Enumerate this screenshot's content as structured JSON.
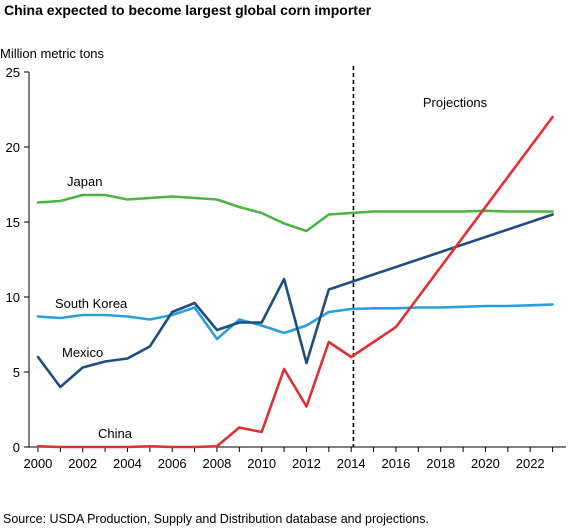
{
  "title": "China expected to become largest global corn importer",
  "source": "Source: USDA Production, Supply and Distribution database and projections.",
  "chart_data": {
    "type": "line",
    "title": "China expected to become largest global corn importer",
    "ylabel": "Million metric tons",
    "xlabel": "",
    "xlim": [
      1999.6,
      2023.6
    ],
    "ylim": [
      0,
      25
    ],
    "yticks": [
      0,
      5,
      10,
      15,
      20,
      25
    ],
    "xticks": [
      2000,
      2002,
      2004,
      2006,
      2008,
      2010,
      2012,
      2014,
      2016,
      2018,
      2020,
      2022
    ],
    "divider_year": 2014.1,
    "divider_label": "Projections",
    "grid": false,
    "legend": "inline labels",
    "series": [
      {
        "name": "Japan",
        "color": "#4bb543",
        "x": [
          2000,
          2001,
          2002,
          2003,
          2004,
          2005,
          2006,
          2007,
          2008,
          2009,
          2010,
          2011,
          2012,
          2013,
          2014,
          2015,
          2016,
          2017,
          2018,
          2019,
          2020,
          2021,
          2022,
          2023
        ],
        "values": [
          16.3,
          16.4,
          16.8,
          16.8,
          16.5,
          16.6,
          16.7,
          16.6,
          16.5,
          16.0,
          15.6,
          14.9,
          14.4,
          15.5,
          15.6,
          15.7,
          15.7,
          15.7,
          15.7,
          15.7,
          15.75,
          15.7,
          15.7,
          15.7
        ]
      },
      {
        "name": "South Korea",
        "color": "#2b9fdc",
        "x": [
          2000,
          2001,
          2002,
          2003,
          2004,
          2005,
          2006,
          2007,
          2008,
          2009,
          2010,
          2011,
          2012,
          2013,
          2014,
          2015,
          2016,
          2017,
          2018,
          2019,
          2020,
          2021,
          2022,
          2023
        ],
        "values": [
          8.7,
          8.6,
          8.8,
          8.8,
          8.7,
          8.5,
          8.8,
          9.3,
          7.2,
          8.5,
          8.1,
          7.6,
          8.1,
          9.0,
          9.2,
          9.25,
          9.25,
          9.3,
          9.3,
          9.35,
          9.4,
          9.4,
          9.45,
          9.5
        ]
      },
      {
        "name": "Mexico",
        "color": "#1f4e80",
        "x": [
          2000,
          2001,
          2002,
          2003,
          2004,
          2005,
          2006,
          2007,
          2008,
          2009,
          2010,
          2011,
          2012,
          2013,
          2023
        ],
        "values": [
          6.0,
          4.0,
          5.3,
          5.7,
          5.9,
          6.7,
          9.0,
          9.6,
          7.8,
          8.3,
          8.3,
          11.2,
          5.6,
          10.5,
          15.5
        ]
      },
      {
        "name": "China",
        "color": "#e03030",
        "x": [
          2000,
          2001,
          2002,
          2003,
          2004,
          2005,
          2006,
          2007,
          2008,
          2009,
          2010,
          2011,
          2012,
          2013,
          2014,
          2016,
          2023
        ],
        "values": [
          0.05,
          0.0,
          0.0,
          0.0,
          0.0,
          0.05,
          0.0,
          0.0,
          0.05,
          1.3,
          1.0,
          5.2,
          2.7,
          7.0,
          6.0,
          8.0,
          22.0
        ]
      }
    ]
  }
}
